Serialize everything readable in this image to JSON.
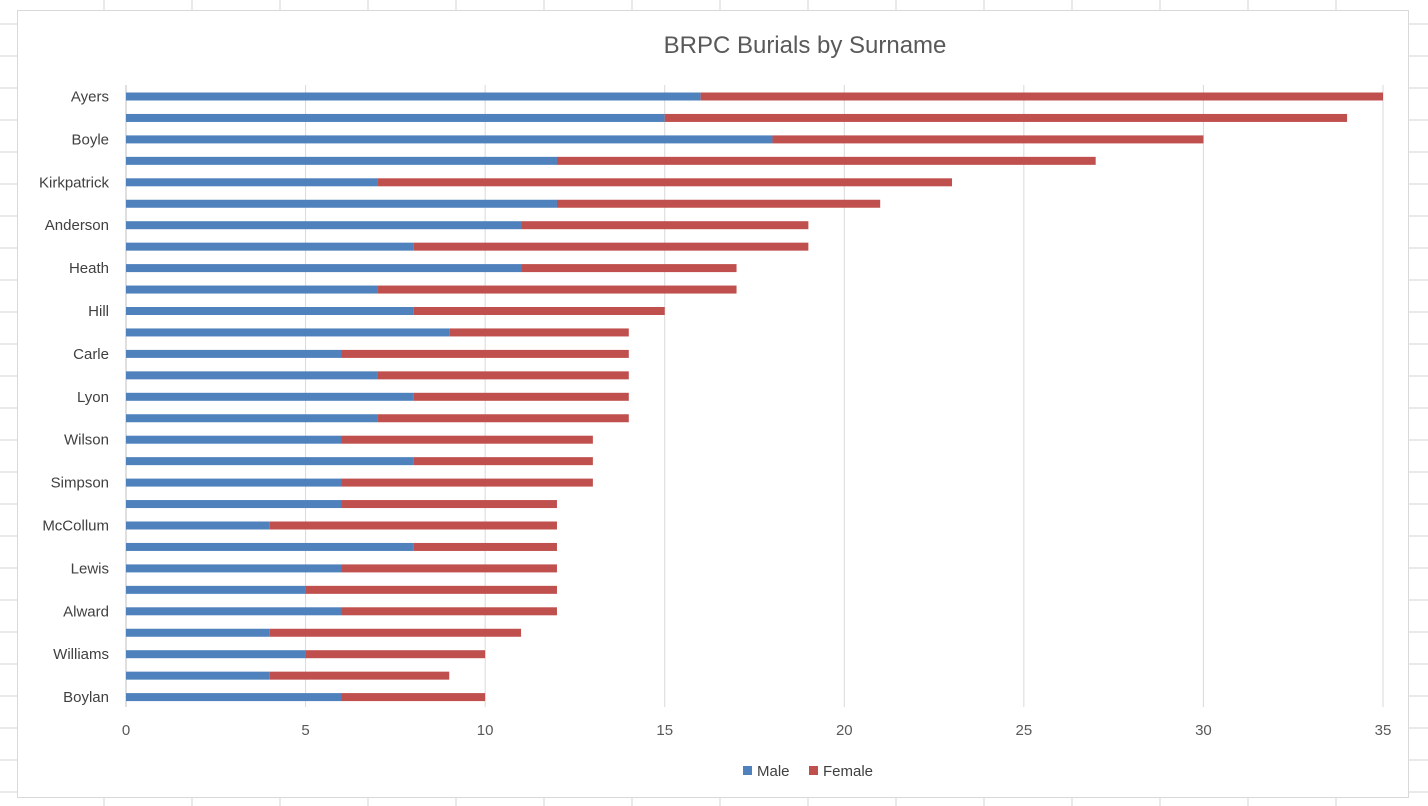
{
  "colors": {
    "male": "#4f81bd",
    "female": "#c0504d",
    "gridline": "#d9d9d9",
    "axis": "#bfbfbf",
    "sheet_grid": "#d4d4d4"
  },
  "chart_data": {
    "type": "bar",
    "orientation": "horizontal",
    "stacked": true,
    "title": "BRPC Burials by Surname",
    "xlabel": "",
    "ylabel": "",
    "xlim": [
      0,
      35
    ],
    "x_ticks": [
      "0",
      "5",
      "10",
      "15",
      "20",
      "25",
      "30",
      "35"
    ],
    "grid": true,
    "legend_position": "bottom",
    "categories": [
      "Ayers",
      "",
      "Boyle",
      "",
      "Kirkpatrick",
      "",
      "Anderson",
      "",
      "Heath",
      "",
      "Hill",
      "",
      "Carle",
      "",
      "Lyon",
      "",
      "Wilson",
      "",
      "Simpson",
      "",
      "McCollum",
      "",
      "Lewis",
      "",
      "Alward",
      "",
      "Williams",
      "",
      "Boylan"
    ],
    "series": [
      {
        "name": "Male",
        "values": [
          16,
          15,
          18,
          12,
          7,
          12,
          11,
          8,
          11,
          7,
          8,
          9,
          6,
          7,
          8,
          7,
          6,
          8,
          6,
          6,
          4,
          8,
          6,
          5,
          6,
          4,
          5,
          4,
          6
        ]
      },
      {
        "name": "Female",
        "values": [
          19,
          19,
          12,
          15,
          16,
          9,
          8,
          11,
          6,
          10,
          7,
          5,
          8,
          7,
          6,
          7,
          7,
          5,
          7,
          6,
          8,
          4,
          6,
          7,
          6,
          7,
          5,
          5,
          4
        ]
      }
    ]
  }
}
